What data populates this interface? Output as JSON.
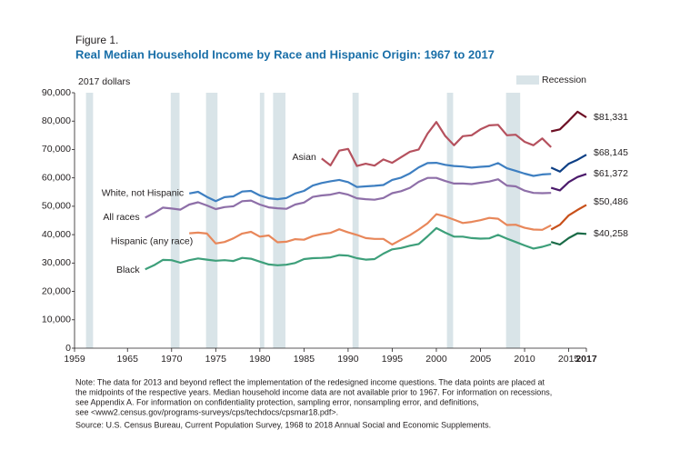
{
  "chart_data": {
    "type": "line",
    "figure_label": "Figure 1.",
    "title": "Real Median Household Income by Race and Hispanic Origin: 1967 to 2017",
    "y_unit_label": "2017 dollars",
    "recession_label": "Recession",
    "recession_color": "#d9e4e8",
    "recessions": [
      [
        1960.3,
        1961.1
      ],
      [
        1969.9,
        1970.9
      ],
      [
        1973.9,
        1975.2
      ],
      [
        1980.0,
        1980.5
      ],
      [
        1981.5,
        1982.9
      ],
      [
        1990.5,
        1991.2
      ],
      [
        2001.2,
        2001.9
      ],
      [
        2007.9,
        2009.5
      ]
    ],
    "x": [
      1967,
      1968,
      1969,
      1970,
      1971,
      1972,
      1973,
      1974,
      1975,
      1976,
      1977,
      1978,
      1979,
      1980,
      1981,
      1982,
      1983,
      1984,
      1985,
      1986,
      1987,
      1988,
      1989,
      1990,
      1991,
      1992,
      1993,
      1994,
      1995,
      1996,
      1997,
      1998,
      1999,
      2000,
      2001,
      2002,
      2003,
      2004,
      2005,
      2006,
      2007,
      2008,
      2009,
      2010,
      2011,
      2012,
      2013,
      2013,
      2014,
      2015,
      2016,
      2017
    ],
    "series": [
      {
        "name": "Asian",
        "colors": [
          "#b5515e",
          "#6d0f24"
        ],
        "values": [
          null,
          null,
          null,
          null,
          null,
          null,
          null,
          null,
          null,
          null,
          null,
          null,
          null,
          null,
          null,
          null,
          null,
          null,
          null,
          null,
          66800,
          64400,
          69600,
          70200,
          64200,
          65000,
          64300,
          66500,
          65300,
          67300,
          69200,
          70000,
          75600,
          79700,
          74800,
          71500,
          74700,
          75000,
          77100,
          78500,
          78700,
          75000,
          75200,
          72700,
          71500,
          73900,
          70800,
          76400,
          77100,
          80100,
          83300,
          81331
        ],
        "value_labels": [
          null,
          null,
          null,
          null,
          null,
          null,
          null,
          null,
          null,
          null,
          null,
          null,
          null,
          null,
          null,
          null,
          null,
          null,
          null,
          null,
          null,
          null,
          null,
          null,
          null,
          null,
          null,
          null,
          null,
          null,
          null,
          null,
          null,
          null,
          null,
          null,
          null,
          null,
          null,
          null,
          null,
          null,
          null,
          null,
          null,
          null,
          null,
          null,
          null,
          null,
          null,
          "$81,331"
        ]
      },
      {
        "name": "White, not Hispanic",
        "colors": [
          "#3e7fc1",
          "#0d3f85"
        ],
        "values": [
          null,
          null,
          null,
          null,
          null,
          54500,
          55100,
          53300,
          51800,
          53200,
          53500,
          55200,
          55400,
          53800,
          52800,
          52500,
          52900,
          54500,
          55400,
          57300,
          58200,
          58800,
          59300,
          58500,
          56800,
          57000,
          57200,
          57500,
          59300,
          60100,
          61600,
          63700,
          65200,
          65300,
          64600,
          64200,
          64000,
          63600,
          63900,
          64100,
          65200,
          63400,
          62500,
          61500,
          60700,
          61200,
          61400,
          63600,
          62200,
          65000,
          66400,
          68145
        ],
        "value_labels": [
          null,
          null,
          null,
          null,
          null,
          null,
          null,
          null,
          null,
          null,
          null,
          null,
          null,
          null,
          null,
          null,
          null,
          null,
          null,
          null,
          null,
          null,
          null,
          null,
          null,
          null,
          null,
          null,
          null,
          null,
          null,
          null,
          null,
          null,
          null,
          null,
          null,
          null,
          null,
          null,
          null,
          null,
          null,
          null,
          null,
          null,
          null,
          null,
          null,
          null,
          null,
          "$68,145"
        ]
      },
      {
        "name": "All races",
        "colors": [
          "#8e6fa8",
          "#4b1a6b"
        ],
        "values": [
          46000,
          47600,
          49500,
          49200,
          48800,
          50600,
          51400,
          50300,
          49000,
          49700,
          50000,
          51800,
          52000,
          50600,
          49600,
          49300,
          49100,
          50600,
          51300,
          53300,
          53800,
          54100,
          54800,
          54100,
          52800,
          52500,
          52300,
          52900,
          54600,
          55300,
          56500,
          58600,
          60000,
          60000,
          58900,
          58000,
          58000,
          57800,
          58300,
          58700,
          59500,
          57300,
          57000,
          55500,
          54700,
          54600,
          54700,
          56500,
          55600,
          58500,
          60300,
          61372
        ],
        "value_labels": [
          null,
          null,
          null,
          null,
          null,
          null,
          null,
          null,
          null,
          null,
          null,
          null,
          null,
          null,
          null,
          null,
          null,
          null,
          null,
          null,
          null,
          null,
          null,
          null,
          null,
          null,
          null,
          null,
          null,
          null,
          null,
          null,
          null,
          null,
          null,
          null,
          null,
          null,
          null,
          null,
          null,
          null,
          null,
          null,
          null,
          null,
          null,
          null,
          null,
          null,
          null,
          "$61,372"
        ]
      },
      {
        "name": "Hispanic (any race)",
        "colors": [
          "#e8875a",
          "#c8501a"
        ],
        "values": [
          null,
          null,
          null,
          null,
          null,
          40500,
          40700,
          40400,
          36900,
          37400,
          38700,
          40400,
          41000,
          39300,
          39700,
          37300,
          37500,
          38400,
          38200,
          39500,
          40200,
          40600,
          41900,
          40800,
          39900,
          38800,
          38500,
          38500,
          36500,
          38200,
          39800,
          41800,
          44000,
          47200,
          46400,
          45300,
          44100,
          44500,
          45100,
          45900,
          45600,
          43400,
          43500,
          42400,
          41800,
          41700,
          43300,
          41800,
          43500,
          46800,
          48700,
          50486
        ],
        "value_labels": [
          null,
          null,
          null,
          null,
          null,
          null,
          null,
          null,
          null,
          null,
          null,
          null,
          null,
          null,
          null,
          null,
          null,
          null,
          null,
          null,
          null,
          null,
          null,
          null,
          null,
          null,
          null,
          null,
          null,
          null,
          null,
          null,
          null,
          null,
          null,
          null,
          null,
          null,
          null,
          null,
          null,
          null,
          null,
          null,
          null,
          null,
          null,
          null,
          null,
          null,
          null,
          "$50,486"
        ]
      },
      {
        "name": "Black",
        "colors": [
          "#3d9f7a",
          "#1a6b47"
        ],
        "values": [
          27800,
          29200,
          31100,
          31000,
          30100,
          31000,
          31600,
          31200,
          30800,
          31000,
          30700,
          31800,
          31500,
          30500,
          29500,
          29200,
          29400,
          30000,
          31400,
          31700,
          31800,
          32000,
          32800,
          32600,
          31700,
          31200,
          31400,
          33300,
          34800,
          35300,
          36100,
          36700,
          39400,
          42300,
          40700,
          39300,
          39300,
          38800,
          38600,
          38700,
          39900,
          38600,
          37400,
          36200,
          35100,
          35700,
          36600,
          37400,
          36500,
          38800,
          40500,
          40258
        ],
        "value_labels": [
          null,
          null,
          null,
          null,
          null,
          null,
          null,
          null,
          null,
          null,
          null,
          null,
          null,
          null,
          null,
          null,
          null,
          null,
          null,
          null,
          null,
          null,
          null,
          null,
          null,
          null,
          null,
          null,
          null,
          null,
          null,
          null,
          null,
          null,
          null,
          null,
          null,
          null,
          null,
          null,
          null,
          null,
          null,
          null,
          null,
          null,
          null,
          null,
          null,
          null,
          null,
          "$40,258"
        ]
      }
    ],
    "xlim": [
      1959,
      2017
    ],
    "xticks": [
      1959,
      1965,
      1970,
      1975,
      1980,
      1985,
      1990,
      1995,
      2000,
      2005,
      2010,
      2015,
      2017
    ],
    "ylim": [
      0,
      90000
    ],
    "yticks": [
      0,
      {
        "value": 10000,
        "label": "10,000"
      },
      {
        "value": 20000,
        "label": "20,000"
      },
      {
        "value": 30000,
        "label": "30,000"
      },
      {
        "value": 40000,
        "label": "40,000"
      },
      {
        "value": 50000,
        "label": "50,000"
      },
      {
        "value": 60000,
        "label": "60,000"
      },
      {
        "value": 70000,
        "label": "70,000"
      },
      {
        "value": 80000,
        "label": "80,000"
      },
      {
        "value": 90000,
        "label": "90,000"
      }
    ],
    "grid": false,
    "notes": [
      "Note: The data for 2013 and beyond reflect the implementation of the redesigned income questions. The data points are placed at",
      "the midpoints of the respective years. Median household income data are not available prior to 1967. For information on recessions,",
      "see Appendix A. For information on confidentiality protection, sampling error, nonsampling error, and definitions,",
      "see <www2.census.gov/programs-surveys/cps/techdocs/cpsmar18.pdf>.",
      "Source: U.S. Census Bureau, Current Population Survey, 1968 to 2018 Annual Social and Economic Supplements."
    ]
  }
}
